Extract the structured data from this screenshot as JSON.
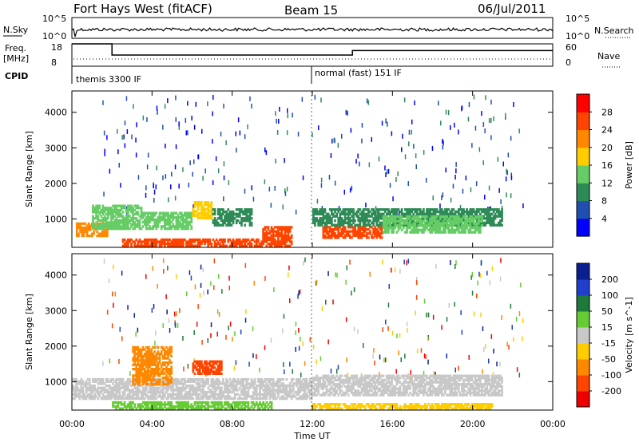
{
  "header": {
    "station": "Fort Hays West (fitACF)",
    "beam": "Beam 15",
    "date": "06/Jul/2011"
  },
  "top_panels": {
    "nsky_label": "N.Sky",
    "nsky_ticks": [
      "10^5",
      "10^0"
    ],
    "nsearch_label": "N.Search",
    "nsearch_ticks": [
      "10^5",
      "10^0"
    ],
    "freq_label": "Freq.",
    "freq_unit": "[MHz]",
    "freq_ticks": [
      "18",
      "8"
    ],
    "nave_label": "Nave",
    "nave_ticks": [
      "60",
      "0"
    ],
    "cpid_label": "CPID",
    "cpid_modes": [
      "themis 3300 IF",
      "normal (fast) 151 IF"
    ]
  },
  "chart_data": [
    {
      "type": "line",
      "title": "N.Sky / N.Search",
      "xlabel": "Time UT",
      "x_range_hours": [
        0,
        24
      ],
      "ylim": [
        "10^0",
        "10^5"
      ],
      "note": "noise level trace roughly constant near upper part of panel"
    },
    {
      "type": "line",
      "title": "Freq. / Nave",
      "xlabel": "Time UT",
      "series": [
        {
          "name": "Freq.",
          "segments": [
            [
              0,
              2,
              18
            ],
            [
              2,
              14,
              13
            ],
            [
              14,
              24,
              15
            ]
          ]
        },
        {
          "name": "Nave",
          "segments": [
            [
              0,
              24,
              8
            ]
          ]
        }
      ],
      "ylim_freq": [
        8,
        18
      ],
      "ylim_nave": [
        0,
        60
      ]
    },
    {
      "type": "heatmap",
      "title": "Power",
      "xlabel": "",
      "ylabel": "Slant Range [km]",
      "x_range_hours": [
        0,
        24
      ],
      "ylim": [
        200,
        4600
      ],
      "y_ticks": [
        1000,
        2000,
        3000,
        4000
      ],
      "colorbar": {
        "label": "Power [dB]",
        "ticks": [
          4,
          8,
          12,
          16,
          20,
          24,
          28
        ],
        "colors": [
          "#0000ff",
          "#1f4fb0",
          "#2e8b57",
          "#66cc66",
          "#ffcc00",
          "#ff8800",
          "#ff4400",
          "#ff0000"
        ]
      },
      "regions": [
        {
          "t0": 0.2,
          "t1": 1.8,
          "r0": 500,
          "r1": 900,
          "level": 20
        },
        {
          "t0": 1.0,
          "t1": 3.5,
          "r0": 700,
          "r1": 1400,
          "level": 12
        },
        {
          "t0": 3.5,
          "t1": 6.0,
          "r0": 700,
          "r1": 1200,
          "level": 12
        },
        {
          "t0": 6.0,
          "t1": 7.0,
          "r0": 1000,
          "r1": 1500,
          "level": 16
        },
        {
          "t0": 7.0,
          "t1": 9.0,
          "r0": 800,
          "r1": 1300,
          "level": 10
        },
        {
          "t0": 2.5,
          "t1": 11.0,
          "r0": 220,
          "r1": 450,
          "level": 26
        },
        {
          "t0": 9.5,
          "t1": 11.0,
          "r0": 450,
          "r1": 800,
          "level": 24
        },
        {
          "t0": 12.5,
          "t1": 15.5,
          "r0": 450,
          "r1": 800,
          "level": 26
        },
        {
          "t0": 12.0,
          "t1": 21.5,
          "r0": 800,
          "r1": 1300,
          "level": 8
        },
        {
          "t0": 15.5,
          "t1": 20.5,
          "r0": 600,
          "r1": 1100,
          "level": 12
        }
      ]
    },
    {
      "type": "heatmap",
      "title": "Velocity",
      "xlabel": "Time UT",
      "ylabel": "Slant Range [km]",
      "x_range_hours": [
        0,
        24
      ],
      "ylim": [
        200,
        4600
      ],
      "y_ticks": [
        1000,
        2000,
        3000,
        4000
      ],
      "x_ticks": [
        "00:00",
        "04:00",
        "08:00",
        "12:00",
        "16:00",
        "20:00",
        "00:00"
      ],
      "colorbar": {
        "label": "Velocity [m s^-1]",
        "ticks": [
          200,
          100,
          50,
          15,
          -15,
          -50,
          -100,
          -200
        ],
        "colors": [
          "#0a1f8f",
          "#1f3fcc",
          "#1e7a3a",
          "#66cc33",
          "#c8c8c8",
          "#ffcc00",
          "#ff8800",
          "#ff4400",
          "#ee0000"
        ]
      },
      "regions": [
        {
          "t0": 0.0,
          "t1": 12.0,
          "r0": 500,
          "r1": 1100,
          "level": 0
        },
        {
          "t0": 3.0,
          "t1": 5.0,
          "r0": 900,
          "r1": 2000,
          "level": -60
        },
        {
          "t0": 6.0,
          "t1": 7.5,
          "r0": 1200,
          "r1": 1600,
          "level": -200
        },
        {
          "t0": 2.0,
          "t1": 10.0,
          "r0": 220,
          "r1": 450,
          "level": 30
        },
        {
          "t0": 12.0,
          "t1": 21.5,
          "r0": 600,
          "r1": 1200,
          "level": 0
        },
        {
          "t0": 12.0,
          "t1": 21.0,
          "r0": 220,
          "r1": 400,
          "level": -40
        }
      ]
    }
  ],
  "axis_labels": {
    "slant_range": "Slant Range [km]",
    "time_ut": "Time UT"
  }
}
